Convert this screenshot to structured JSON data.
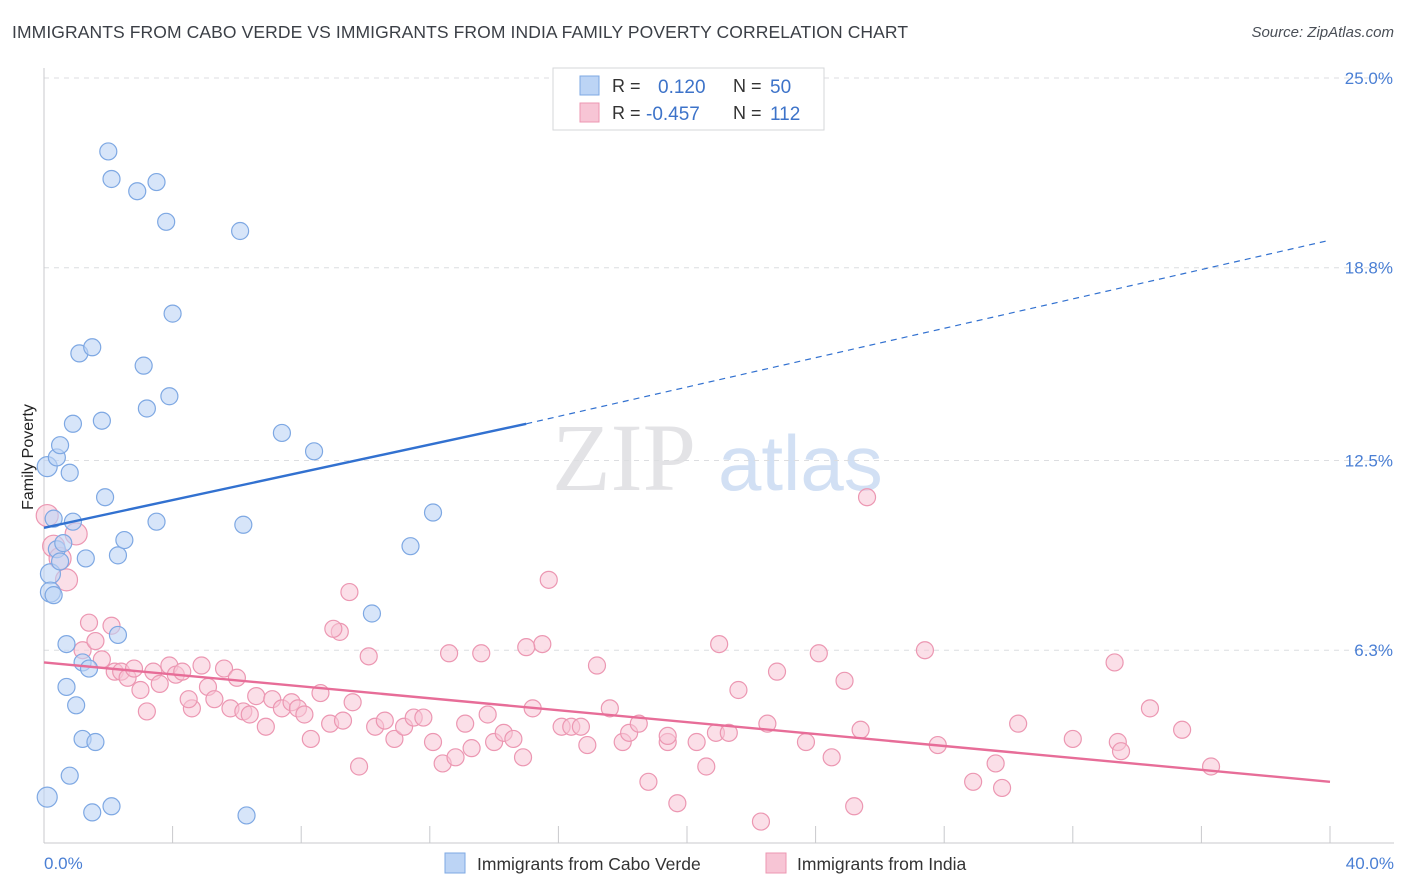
{
  "title": "IMMIGRANTS FROM CABO VERDE VS IMMIGRANTS FROM INDIA FAMILY POVERTY CORRELATION CHART",
  "source": "Source: ZipAtlas.com",
  "watermark": {
    "zip": "ZIP",
    "atlas": "atlas"
  },
  "colors": {
    "blue_fill": "#bcd4f5",
    "blue_stroke": "#7ea8e3",
    "blue_line": "#3271d0",
    "pink_fill": "#f7c5d5",
    "pink_stroke": "#ec97b2",
    "pink_line": "#e76d98",
    "tick_text": "#4a7fd4",
    "grid": "#dcdde0"
  },
  "legend": {
    "row1": {
      "r_label": "R =",
      "r_value": "0.120",
      "n_label": "N =",
      "n_value": "50"
    },
    "row2": {
      "r_label": "R =",
      "r_value": "-0.457",
      "n_label": "N =",
      "n_value": "112"
    }
  },
  "chart_data": {
    "type": "scatter",
    "title": "IMMIGRANTS FROM CABO VERDE VS IMMIGRANTS FROM INDIA FAMILY POVERTY CORRELATION CHART",
    "xlabel": "",
    "ylabel": "Family Poverty",
    "xlim": [
      0,
      40
    ],
    "ylim": [
      0,
      25
    ],
    "x_tick_labels": {
      "min": "0.0%",
      "max": "40.0%"
    },
    "y_ticks": [
      {
        "value": 25.0,
        "label": "25.0%"
      },
      {
        "value": 18.8,
        "label": "18.8%"
      },
      {
        "value": 12.5,
        "label": "12.5%"
      },
      {
        "value": 6.3,
        "label": "6.3%"
      }
    ],
    "series": [
      {
        "name": "Immigrants from Cabo Verde",
        "r": 0.12,
        "n": 50,
        "trend": {
          "x0": 0,
          "y0": 10.3,
          "x1": 15,
          "y1": 13.7,
          "dash_x1": 40,
          "dash_y1": 19.7
        },
        "points": [
          [
            0.1,
            12.3
          ],
          [
            0.2,
            8.8
          ],
          [
            0.2,
            8.2
          ],
          [
            0.3,
            8.1
          ],
          [
            0.3,
            10.6
          ],
          [
            0.4,
            12.6
          ],
          [
            0.4,
            9.6
          ],
          [
            0.5,
            9.2
          ],
          [
            0.5,
            13.0
          ],
          [
            0.6,
            9.8
          ],
          [
            0.7,
            6.5
          ],
          [
            0.8,
            12.1
          ],
          [
            0.9,
            13.7
          ],
          [
            0.9,
            10.5
          ],
          [
            1.0,
            4.5
          ],
          [
            0.7,
            5.1
          ],
          [
            0.8,
            2.2
          ],
          [
            1.1,
            16.0
          ],
          [
            1.2,
            3.4
          ],
          [
            1.3,
            9.3
          ],
          [
            1.2,
            5.9
          ],
          [
            1.4,
            5.7
          ],
          [
            1.5,
            16.2
          ],
          [
            1.5,
            1.0
          ],
          [
            1.6,
            3.3
          ],
          [
            1.8,
            13.8
          ],
          [
            1.9,
            11.3
          ],
          [
            2.0,
            22.6
          ],
          [
            2.1,
            21.7
          ],
          [
            2.1,
            1.2
          ],
          [
            2.3,
            6.8
          ],
          [
            2.3,
            9.4
          ],
          [
            2.5,
            9.9
          ],
          [
            2.9,
            21.3
          ],
          [
            3.1,
            15.6
          ],
          [
            3.2,
            14.2
          ],
          [
            3.5,
            10.5
          ],
          [
            3.5,
            21.6
          ],
          [
            3.8,
            20.3
          ],
          [
            3.9,
            14.6
          ],
          [
            4.0,
            17.3
          ],
          [
            6.1,
            20.0
          ],
          [
            6.2,
            10.4
          ],
          [
            6.3,
            0.9
          ],
          [
            7.4,
            13.4
          ],
          [
            8.4,
            12.8
          ],
          [
            10.2,
            7.5
          ],
          [
            11.4,
            9.7
          ],
          [
            12.1,
            10.8
          ],
          [
            0.1,
            1.5
          ]
        ]
      },
      {
        "name": "Immigrants from India",
        "r": -0.457,
        "n": 112,
        "trend": {
          "x0": 0,
          "y0": 5.9,
          "x1": 40,
          "y1": 2.0
        },
        "points": [
          [
            0.1,
            10.7
          ],
          [
            0.3,
            9.7
          ],
          [
            0.5,
            9.3
          ],
          [
            0.7,
            8.6
          ],
          [
            1.0,
            10.1
          ],
          [
            1.2,
            6.3
          ],
          [
            1.4,
            7.2
          ],
          [
            1.6,
            6.6
          ],
          [
            1.8,
            6.0
          ],
          [
            2.1,
            7.1
          ],
          [
            2.2,
            5.6
          ],
          [
            2.4,
            5.6
          ],
          [
            2.6,
            5.4
          ],
          [
            2.8,
            5.7
          ],
          [
            3.0,
            5.0
          ],
          [
            3.2,
            4.3
          ],
          [
            3.4,
            5.6
          ],
          [
            3.6,
            5.2
          ],
          [
            3.9,
            5.8
          ],
          [
            4.1,
            5.5
          ],
          [
            4.3,
            5.6
          ],
          [
            4.6,
            4.4
          ],
          [
            4.9,
            5.8
          ],
          [
            5.1,
            5.1
          ],
          [
            5.3,
            4.7
          ],
          [
            5.6,
            5.7
          ],
          [
            5.8,
            4.4
          ],
          [
            6.0,
            5.4
          ],
          [
            6.2,
            4.3
          ],
          [
            6.4,
            4.2
          ],
          [
            6.6,
            4.8
          ],
          [
            6.9,
            3.8
          ],
          [
            7.1,
            4.7
          ],
          [
            7.4,
            4.4
          ],
          [
            7.7,
            4.6
          ],
          [
            7.9,
            4.4
          ],
          [
            8.1,
            4.2
          ],
          [
            8.3,
            3.4
          ],
          [
            8.6,
            4.9
          ],
          [
            8.9,
            3.9
          ],
          [
            9.3,
            4.0
          ],
          [
            9.6,
            4.6
          ],
          [
            9.2,
            6.9
          ],
          [
            9.5,
            8.2
          ],
          [
            9.8,
            2.5
          ],
          [
            10.1,
            6.1
          ],
          [
            10.3,
            3.8
          ],
          [
            10.6,
            4.0
          ],
          [
            10.9,
            3.4
          ],
          [
            11.2,
            3.8
          ],
          [
            11.5,
            4.1
          ],
          [
            11.8,
            4.1
          ],
          [
            12.1,
            3.3
          ],
          [
            12.4,
            2.6
          ],
          [
            12.6,
            6.2
          ],
          [
            12.8,
            2.8
          ],
          [
            13.1,
            3.9
          ],
          [
            13.3,
            3.1
          ],
          [
            13.6,
            6.2
          ],
          [
            13.8,
            4.2
          ],
          [
            14.0,
            3.3
          ],
          [
            14.3,
            3.6
          ],
          [
            14.6,
            3.4
          ],
          [
            14.9,
            2.8
          ],
          [
            15.2,
            4.4
          ],
          [
            15.5,
            6.5
          ],
          [
            15.7,
            8.6
          ],
          [
            16.1,
            3.8
          ],
          [
            16.4,
            3.8
          ],
          [
            16.7,
            3.8
          ],
          [
            16.9,
            3.2
          ],
          [
            17.2,
            5.8
          ],
          [
            17.6,
            4.4
          ],
          [
            18.0,
            3.3
          ],
          [
            18.2,
            3.6
          ],
          [
            18.5,
            3.9
          ],
          [
            18.8,
            2.0
          ],
          [
            19.4,
            3.3
          ],
          [
            19.7,
            1.3
          ],
          [
            20.3,
            3.3
          ],
          [
            20.6,
            2.5
          ],
          [
            20.9,
            3.6
          ],
          [
            21.3,
            3.6
          ],
          [
            21.6,
            5.0
          ],
          [
            22.3,
            0.7
          ],
          [
            22.5,
            3.9
          ],
          [
            22.8,
            5.6
          ],
          [
            23.7,
            3.3
          ],
          [
            24.1,
            6.2
          ],
          [
            24.5,
            2.8
          ],
          [
            24.9,
            5.3
          ],
          [
            25.2,
            1.2
          ],
          [
            25.4,
            3.7
          ],
          [
            25.6,
            11.3
          ],
          [
            27.4,
            6.3
          ],
          [
            27.8,
            3.2
          ],
          [
            28.9,
            2.0
          ],
          [
            29.6,
            2.6
          ],
          [
            29.8,
            1.8
          ],
          [
            30.3,
            3.9
          ],
          [
            32.0,
            3.4
          ],
          [
            33.3,
            5.9
          ],
          [
            33.4,
            3.3
          ],
          [
            33.5,
            3.0
          ],
          [
            34.4,
            4.4
          ],
          [
            35.4,
            3.7
          ],
          [
            36.3,
            2.5
          ],
          [
            19.4,
            3.5
          ],
          [
            15.0,
            6.4
          ],
          [
            4.5,
            4.7
          ],
          [
            9.0,
            7.0
          ],
          [
            21.0,
            6.5
          ]
        ]
      }
    ]
  },
  "bottom_legend": {
    "series1": "Immigrants from Cabo Verde",
    "series2": "Immigrants from India"
  }
}
